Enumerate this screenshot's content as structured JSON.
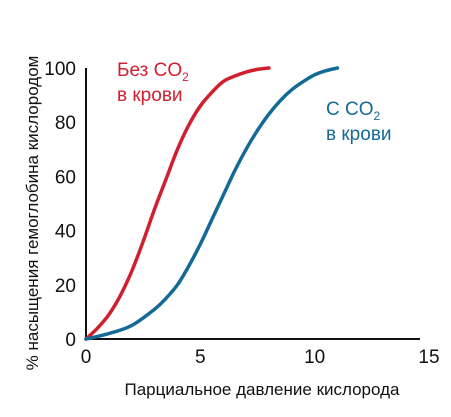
{
  "chart_data": {
    "type": "line",
    "xlabel": "Парциальное давление кислорода",
    "ylabel": "% насыщения гемоглобина кислородом",
    "xlim": [
      0,
      15
    ],
    "ylim": [
      0,
      100
    ],
    "x_ticks": [
      "0",
      "5",
      "10",
      "15"
    ],
    "y_ticks": [
      "0",
      "20",
      "40",
      "60",
      "80",
      "100"
    ],
    "grid": false,
    "series": [
      {
        "name": "Без CO2 в крови",
        "color": "#d0202f",
        "x": [
          0,
          0.5,
          1,
          1.5,
          2,
          2.5,
          3,
          3.5,
          4,
          4.5,
          5,
          5.5,
          6,
          6.5,
          7,
          7.5,
          8
        ],
        "y": [
          0,
          4,
          9,
          16,
          25,
          36,
          48,
          59,
          70,
          79,
          86,
          91,
          95,
          97,
          98.5,
          99.5,
          100
        ]
      },
      {
        "name": "С CO2 в крови",
        "color": "#146a96",
        "x": [
          0,
          1,
          2,
          3,
          3.5,
          4,
          4.5,
          5,
          5.5,
          6,
          6.5,
          7,
          7.5,
          8,
          8.5,
          9,
          9.5,
          10,
          10.5,
          11
        ],
        "y": [
          0,
          2,
          5,
          11,
          15,
          20,
          27,
          35,
          44,
          53,
          62,
          70,
          77,
          83,
          88,
          92,
          95,
          97.5,
          99,
          100
        ]
      }
    ]
  },
  "annotations": {
    "red": {
      "line1": "Без CO",
      "sub": "2",
      "line2": "в крови",
      "color": "#d0202f"
    },
    "blue": {
      "line1": "С CO",
      "sub": "2",
      "line2": "в крови",
      "color": "#146a96"
    }
  }
}
